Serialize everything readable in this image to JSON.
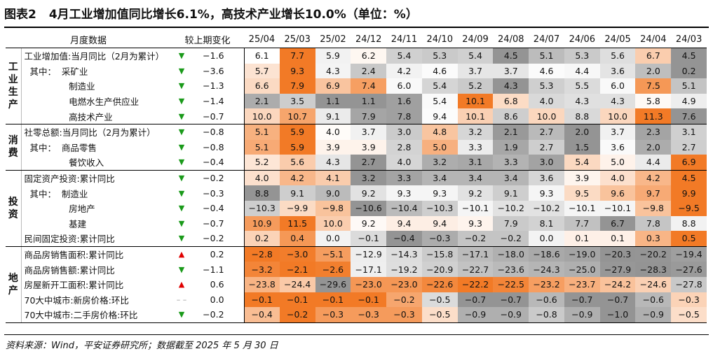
{
  "title": {
    "figure": "图表2",
    "text": "4月工业增加值同比增长6.1%，高技术产业增长10.0%（单位：%）"
  },
  "header": {
    "name": "月度数据",
    "change": "较上期变化",
    "months": [
      "25/04",
      "25/03",
      "25/02",
      "24/12",
      "24/11",
      "24/10",
      "24/09",
      "24/08",
      "24/07",
      "24/06",
      "24/05",
      "24/04",
      "24/03"
    ]
  },
  "colors": {
    "up_arrow": "#e00000",
    "down_arrow": "#1a9a1a",
    "neutral_arrow": "#999999"
  },
  "groups": [
    {
      "label": "工业生产",
      "rows": [
        {
          "name": "工业增加值:当月同比（2月为累计）",
          "dir": "down",
          "change": "−1.6",
          "values": [
            "6.1",
            "7.7",
            "5.9",
            "6.2",
            "5.4",
            "5.3",
            "5.4",
            "4.5",
            "5.1",
            "5.3",
            "5.6",
            "6.7",
            "4.5"
          ]
        },
        {
          "name": "  其中：  采矿业",
          "dir": "down",
          "change": "−3.6",
          "values": [
            "5.7",
            "9.3",
            "4.3",
            "2.4",
            "4.2",
            "4.6",
            "3.7",
            "3.7",
            "4.6",
            "4.4",
            "3.6",
            "2.0",
            "0.2"
          ]
        },
        {
          "name": "                制造业",
          "dir": "down",
          "change": "−1.3",
          "values": [
            "6.6",
            "7.9",
            "6.9",
            "7.4",
            "6.0",
            "5.4",
            "5.2",
            "4.3",
            "5.3",
            "5.5",
            "6.0",
            "7.5",
            "5.1"
          ]
        },
        {
          "name": "                电燃水生产供应业",
          "dir": "down",
          "change": "−1.4",
          "values": [
            "2.1",
            "3.5",
            "1.1",
            "1.1",
            "1.6",
            "5.4",
            "10.1",
            "6.8",
            "4.0",
            "4.3",
            "4.3",
            "5.8",
            "4.9"
          ]
        },
        {
          "name": "                高技术产业",
          "dir": "down",
          "change": "−0.7",
          "values": [
            "10.0",
            "10.7",
            "9.1",
            "7.9",
            "7.8",
            "9.4",
            "10.1",
            "8.6",
            "10.0",
            "8.8",
            "10.0",
            "11.3",
            "7.6"
          ]
        }
      ]
    },
    {
      "label": "消费",
      "rows": [
        {
          "name": "社零总额:当月同比（2月为累计）",
          "dir": "down",
          "change": "−0.8",
          "values": [
            "5.1",
            "5.9",
            "4.0",
            "3.7",
            "3.0",
            "4.8",
            "3.2",
            "2.1",
            "2.7",
            "2.0",
            "3.7",
            "2.3",
            "3.1"
          ]
        },
        {
          "name": "  其中：  商品零售",
          "dir": "down",
          "change": "−0.8",
          "values": [
            "5.1",
            "5.9",
            "3.9",
            "3.9",
            "2.8",
            "5.0",
            "3.3",
            "1.9",
            "2.7",
            "1.5",
            "3.6",
            "2.0",
            "2.7"
          ]
        },
        {
          "name": "                餐饮收入",
          "dir": "down",
          "change": "−0.4",
          "values": [
            "5.2",
            "5.6",
            "4.3",
            "2.7",
            "4.0",
            "3.2",
            "3.1",
            "3.3",
            "3.0",
            "5.4",
            "5.0",
            "4.4",
            "6.9"
          ]
        }
      ]
    },
    {
      "label": "投资",
      "rows": [
        {
          "name": "固定资产投资:累计同比",
          "dir": "down",
          "change": "−0.2",
          "values": [
            "4.0",
            "4.2",
            "4.1",
            "3.2",
            "3.3",
            "3.4",
            "3.4",
            "3.4",
            "3.6",
            "3.9",
            "4.0",
            "4.2",
            "4.5"
          ]
        },
        {
          "name": "  其中：  制造业",
          "dir": "down",
          "change": "−0.3",
          "values": [
            "8.8",
            "9.1",
            "9.0",
            "9.2",
            "9.3",
            "9.3",
            "9.2",
            "9.1",
            "9.3",
            "9.5",
            "9.6",
            "9.7",
            "9.9"
          ]
        },
        {
          "name": "                房地产",
          "dir": "down",
          "change": "−0.4",
          "values": [
            "−10.3",
            "−9.9",
            "−9.8",
            "−10.6",
            "−10.4",
            "−10.3",
            "−10.1",
            "−10.2",
            "−10.2",
            "−10.1",
            "−10.1",
            "−9.8",
            "−9.5"
          ]
        },
        {
          "name": "                基建",
          "dir": "down",
          "change": "−0.7",
          "values": [
            "10.9",
            "11.5",
            "10.0",
            "9.2",
            "9.4",
            "9.4",
            "9.3",
            "7.9",
            "8.1",
            "7.7",
            "6.7",
            "7.8",
            "8.8"
          ]
        },
        {
          "name": "民间固定投资:累计同比",
          "dir": "down",
          "change": "−0.2",
          "values": [
            "0.2",
            "0.4",
            "0.0",
            "−0.1",
            "−0.4",
            "−0.3",
            "−0.2",
            "−0.2",
            "0.0",
            "0.1",
            "0.1",
            "0.3",
            "0.5"
          ]
        }
      ]
    },
    {
      "label": "地产",
      "rows": [
        {
          "name": "商品房销售面积:累计同比",
          "dir": "up",
          "change": "0.2",
          "values": [
            "−2.8",
            "−3.0",
            "−5.1",
            "−12.9",
            "−14.3",
            "−15.8",
            "−17.1",
            "−18.0",
            "−18.6",
            "−19.0",
            "−20.3",
            "−20.2",
            "−19.4"
          ]
        },
        {
          "name": "商品房销售额:累计同比",
          "dir": "down",
          "change": "−1.1",
          "values": [
            "−3.2",
            "−2.1",
            "−2.6",
            "−17.1",
            "−19.2",
            "−20.9",
            "−22.7",
            "−23.6",
            "−24.3",
            "−25.0",
            "−27.9",
            "−28.3",
            "−27.6"
          ]
        },
        {
          "name": "房屋新开工面积:累计同比",
          "dir": "up",
          "change": "0.6",
          "values": [
            "−23.8",
            "−24.4",
            "−29.6",
            "−23.0",
            "−23.0",
            "−22.6",
            "−22.2",
            "−22.5",
            "−23.2",
            "−23.7",
            "−24.2",
            "−24.6",
            "−27.8"
          ]
        },
        {
          "name": "70大中城市:新房价格:环比",
          "dir": "flat",
          "change": "0.0",
          "values": [
            "−0.1",
            "−0.1",
            "−0.1",
            "−0.1",
            "−0.2",
            "−0.5",
            "−0.7",
            "−0.7",
            "−0.6",
            "−0.7",
            "−0.7",
            "−0.6",
            "−0.3"
          ]
        },
        {
          "name": "70大中城市:二手房价格:环比",
          "dir": "down",
          "change": "−0.2",
          "values": [
            "−0.4",
            "−0.2",
            "−0.3",
            "−0.3",
            "−0.3",
            "−0.5",
            "−0.9",
            "−0.9",
            "−0.8",
            "−0.9",
            "−1.0",
            "−0.9",
            "−0.5"
          ]
        }
      ]
    }
  ],
  "source": "资料来源：Wind，平安证券研究所；数据截至 2025 年 5 月 30 日"
}
